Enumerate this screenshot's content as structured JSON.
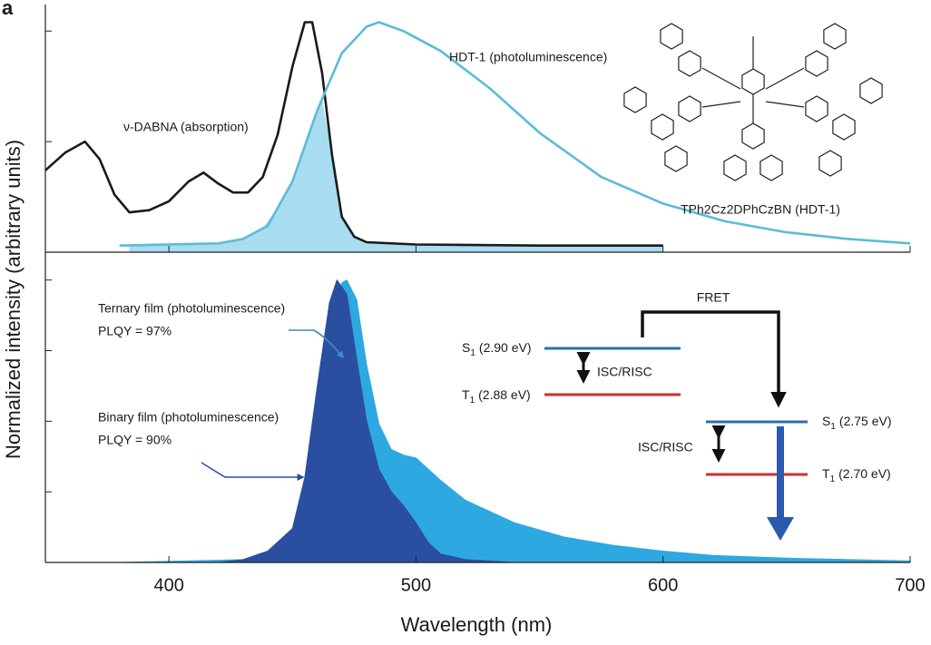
{
  "panel_label": "a",
  "chart_data": [
    {
      "type": "line",
      "ylabel": "Normalized intensity (arbitrary units)",
      "xlim": [
        350,
        700
      ],
      "ylim": [
        0,
        1.12
      ],
      "yticks": [
        0,
        0.5,
        1
      ],
      "series": [
        {
          "name": "ν-DABNA (absorption)",
          "color": "#1a1a1a",
          "x": [
            350,
            358,
            366,
            372,
            378,
            384,
            392,
            400,
            408,
            414,
            420,
            426,
            432,
            438,
            444,
            450,
            455,
            458,
            462,
            466,
            470,
            475,
            480,
            500,
            550,
            600
          ],
          "values": [
            0.37,
            0.45,
            0.5,
            0.42,
            0.26,
            0.18,
            0.19,
            0.23,
            0.32,
            0.36,
            0.31,
            0.27,
            0.27,
            0.34,
            0.53,
            0.84,
            1.04,
            1.04,
            0.81,
            0.44,
            0.16,
            0.07,
            0.045,
            0.035,
            0.03,
            0.03
          ]
        },
        {
          "name": "HDT-1 (photoluminescence)",
          "color": "#5bbcd6",
          "x": [
            380,
            420,
            430,
            440,
            450,
            460,
            470,
            480,
            485,
            495,
            510,
            530,
            550,
            575,
            600,
            625,
            650,
            675,
            700
          ],
          "values": [
            0.03,
            0.04,
            0.06,
            0.12,
            0.32,
            0.64,
            0.9,
            1.02,
            1.04,
            1.0,
            0.91,
            0.74,
            0.54,
            0.34,
            0.22,
            0.14,
            0.09,
            0.06,
            0.04
          ]
        }
      ],
      "annotations": {
        "molecule": "TPh2Cz2DPhCzBN (HDT-1)"
      }
    },
    {
      "type": "area",
      "xlabel": "Wavelength (nm)",
      "xlim": [
        350,
        700
      ],
      "xticks": [
        400,
        500,
        600,
        700
      ],
      "ylim": [
        0,
        1.06
      ],
      "yticks": [
        0,
        0.25,
        0.5,
        0.75,
        1
      ],
      "series": [
        {
          "name": "Ternary film (photoluminescence)",
          "color": "#2ea8e0",
          "x": [
            380,
            430,
            440,
            450,
            455,
            460,
            465,
            470,
            472,
            476,
            480,
            485,
            490,
            495,
            500,
            505,
            510,
            520,
            540,
            560,
            580,
            600,
            620,
            650,
            700
          ],
          "values": [
            0,
            0.01,
            0.02,
            0.06,
            0.15,
            0.45,
            0.8,
            0.99,
            1.0,
            0.93,
            0.7,
            0.49,
            0.4,
            0.38,
            0.37,
            0.33,
            0.29,
            0.22,
            0.14,
            0.09,
            0.06,
            0.04,
            0.025,
            0.015,
            0.005
          ]
        },
        {
          "name": "Binary film (photoluminescence)",
          "color": "#2a4fa0",
          "x": [
            420,
            430,
            440,
            450,
            455,
            460,
            465,
            468,
            472,
            476,
            480,
            485,
            490,
            495,
            500,
            505,
            510,
            520,
            540
          ],
          "values": [
            0,
            0.01,
            0.04,
            0.12,
            0.3,
            0.62,
            0.92,
            1.0,
            0.95,
            0.72,
            0.5,
            0.33,
            0.25,
            0.2,
            0.14,
            0.07,
            0.03,
            0.01,
            0
          ]
        }
      ],
      "annotations": {
        "ternary_plqy": "PLQY = 97%",
        "binary_plqy": "PLQY = 90%",
        "fret": "FRET",
        "isc_donor": "ISC/RISC",
        "isc_acceptor": "ISC/RISC",
        "levels": [
          {
            "state": "S",
            "sub": "1",
            "energy": "(2.90 eV)"
          },
          {
            "state": "T",
            "sub": "1",
            "energy": "(2.88 eV)"
          },
          {
            "state": "S",
            "sub": "1",
            "energy": "(2.75 eV)"
          },
          {
            "state": "T",
            "sub": "1",
            "energy": "(2.70 eV)"
          }
        ]
      }
    }
  ]
}
